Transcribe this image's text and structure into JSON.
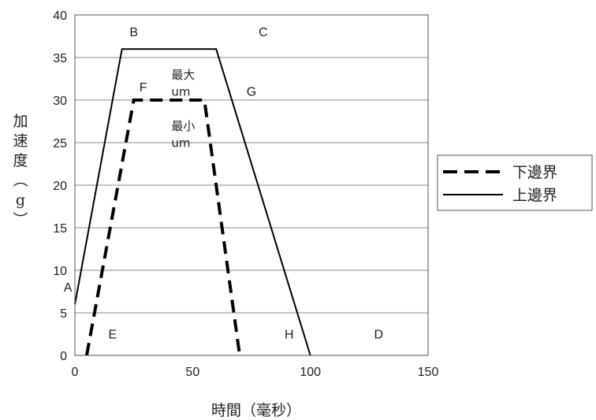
{
  "chart_data": {
    "type": "line",
    "title": "",
    "xlabel": "時間（毫秒）",
    "ylabel": "加速度（g）",
    "xlim": [
      0,
      150
    ],
    "ylim": [
      0,
      40
    ],
    "xticks": [
      "0",
      "50",
      "100",
      "150"
    ],
    "yticks": [
      "0",
      "5",
      "10",
      "15",
      "20",
      "25",
      "30",
      "35",
      "40"
    ],
    "grid": "horizontal",
    "legend_position": "right",
    "series": [
      {
        "name": "下邊界",
        "style": "dashed",
        "color": "#000000",
        "x": [
          5,
          25,
          55,
          70
        ],
        "y": [
          0,
          30,
          30,
          0
        ]
      },
      {
        "name": "上邊界",
        "style": "solid",
        "color": "#000000",
        "x": [
          0,
          20,
          60,
          100
        ],
        "y": [
          6,
          36,
          36,
          0
        ]
      }
    ],
    "point_labels": [
      {
        "text": "A",
        "x": -3,
        "y": 7.5
      },
      {
        "text": "B",
        "x": 25,
        "y": 37.5
      },
      {
        "text": "C",
        "x": 80,
        "y": 37.5
      },
      {
        "text": "F",
        "x": 29,
        "y": 31
      },
      {
        "text": "G",
        "x": 75,
        "y": 30.5
      },
      {
        "text": "E",
        "x": 16,
        "y": 2
      },
      {
        "text": "H",
        "x": 91,
        "y": 2
      },
      {
        "text": "D",
        "x": 129,
        "y": 2
      }
    ],
    "annotations": [
      {
        "text": "最大",
        "x": 46,
        "y": 32.5
      },
      {
        "text": "um",
        "x": 45,
        "y": 30.5
      },
      {
        "text": "最小",
        "x": 46,
        "y": 26.5
      },
      {
        "text": "um",
        "x": 45,
        "y": 24.5
      }
    ]
  }
}
